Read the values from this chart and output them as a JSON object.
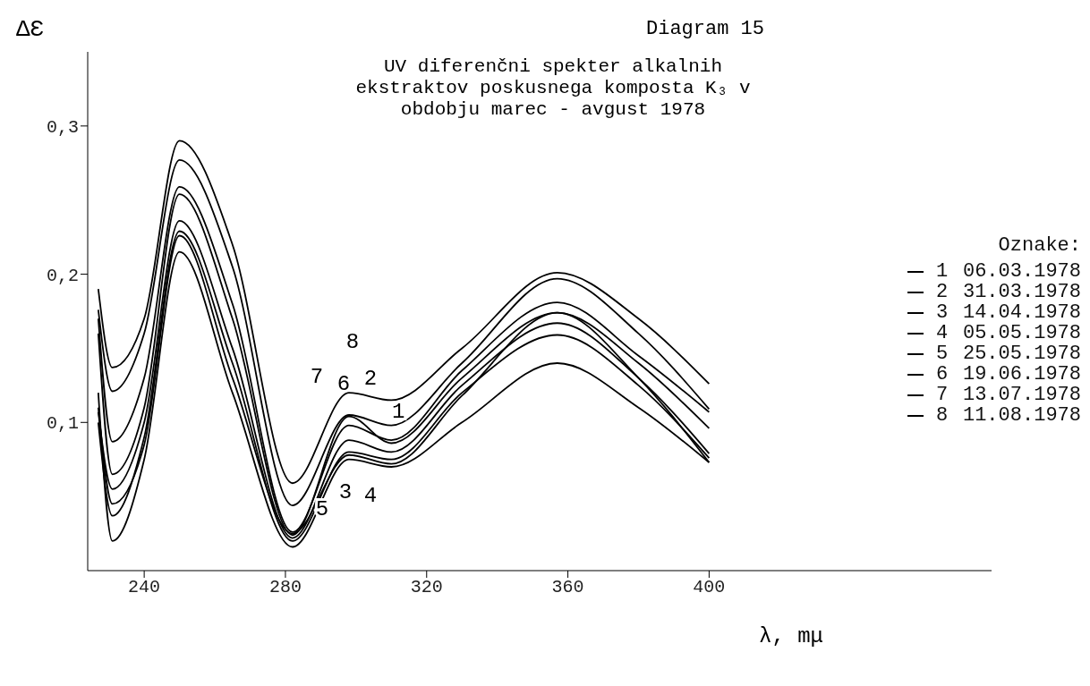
{
  "chart_data": {
    "type": "line",
    "title": "Diagram 15",
    "subtitle": "UV diferenčni spekter alkalnih ekstraktov poskusnega komposta K₃ v obdobju marec - avgust 1978",
    "xlabel": "λ, mμ",
    "ylabel": "ΔƐ",
    "legend_title": "Oznake:",
    "legend": "right",
    "grid": false,
    "marker": "none",
    "line_style": "solid",
    "x": [
      227,
      231,
      240,
      250,
      265,
      282,
      298,
      310,
      330,
      357,
      380,
      400
    ],
    "xlim": [
      224,
      480
    ],
    "xticks": [
      240,
      280,
      320,
      360,
      400
    ],
    "ylim": [
      0,
      0.35
    ],
    "yticks": [
      {
        "value": 0.1,
        "label": "0,1"
      },
      {
        "value": 0.2,
        "label": "0,2"
      },
      {
        "value": 0.3,
        "label": "0,3"
      }
    ],
    "series": [
      {
        "name": "1 06.03.1978",
        "color": "#000000",
        "values": [
          0.107,
          0.055,
          0.1,
          0.236,
          0.15,
          0.022,
          0.088,
          0.08,
          0.125,
          0.167,
          0.13,
          0.079
        ]
      },
      {
        "name": "2 31.03.1978",
        "color": "#000000",
        "values": [
          0.17,
          0.087,
          0.13,
          0.259,
          0.18,
          0.026,
          0.098,
          0.088,
          0.135,
          0.181,
          0.145,
          0.107
        ]
      },
      {
        "name": "3 14.04.1978",
        "color": "#000000",
        "values": [
          0.1,
          0.037,
          0.09,
          0.229,
          0.14,
          0.02,
          0.08,
          0.075,
          0.12,
          0.159,
          0.125,
          0.076
        ]
      },
      {
        "name": "4 05.05.1978",
        "color": "#000000",
        "values": [
          0.11,
          0.045,
          0.085,
          0.226,
          0.13,
          0.025,
          0.078,
          0.072,
          0.118,
          0.174,
          0.13,
          0.073
        ]
      },
      {
        "name": "5 25.05.1978",
        "color": "#000000",
        "values": [
          0.12,
          0.02,
          0.075,
          0.215,
          0.12,
          0.016,
          0.075,
          0.07,
          0.1,
          0.14,
          0.11,
          0.073
        ]
      },
      {
        "name": "6 19.06.1978",
        "color": "#000000",
        "values": [
          0.16,
          0.065,
          0.11,
          0.254,
          0.17,
          0.024,
          0.104,
          0.086,
          0.13,
          0.174,
          0.14,
          0.096
        ]
      },
      {
        "name": "7 13.07.1978",
        "color": "#000000",
        "values": [
          0.176,
          0.121,
          0.16,
          0.277,
          0.205,
          0.044,
          0.105,
          0.098,
          0.14,
          0.197,
          0.16,
          0.109
        ]
      },
      {
        "name": "8 11.08.1978",
        "color": "#000000",
        "values": [
          0.19,
          0.137,
          0.17,
          0.29,
          0.22,
          0.059,
          0.12,
          0.115,
          0.15,
          0.201,
          0.17,
          0.126
        ]
      }
    ],
    "annotations": [
      "1",
      "2",
      "3",
      "4",
      "5",
      "6",
      "7",
      "8"
    ]
  }
}
